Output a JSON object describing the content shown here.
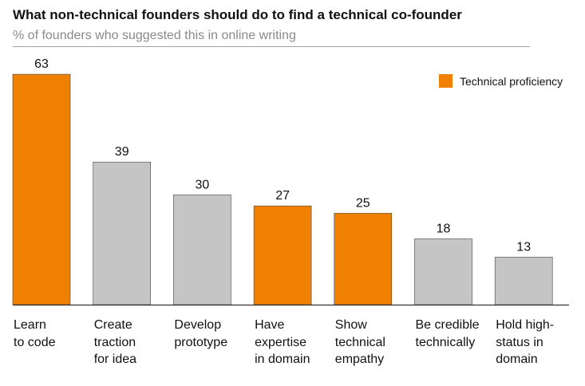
{
  "header": {
    "title": "What non-technical founders should do to find a technical co-founder",
    "subtitle": "% of founders who suggested this in online writing"
  },
  "legend": {
    "label": "Technical proficiency",
    "color": "#f08000"
  },
  "colors": {
    "highlight": "#f08000",
    "other": "#c5c5c5",
    "axis": "#333333"
  },
  "chart_data": {
    "type": "bar",
    "title": "What non-technical founders should do to find a technical co-founder",
    "subtitle": "% of founders who suggested this in online writing",
    "xlabel": "",
    "ylabel": "",
    "ylim": [
      0,
      66
    ],
    "grid": false,
    "legend_position": "top-right",
    "categories": [
      "Learn\nto code",
      "Create\ntraction\nfor idea",
      "Develop\nprototype",
      "Have\nexpertise\nin domain",
      "Show\ntechnical\nempathy",
      "Be credible\ntechnically",
      "Hold high-\nstatus in\ndomain"
    ],
    "values": [
      63,
      39,
      30,
      27,
      25,
      18,
      13
    ],
    "technical_proficiency": [
      true,
      false,
      false,
      true,
      true,
      false,
      false
    ]
  }
}
